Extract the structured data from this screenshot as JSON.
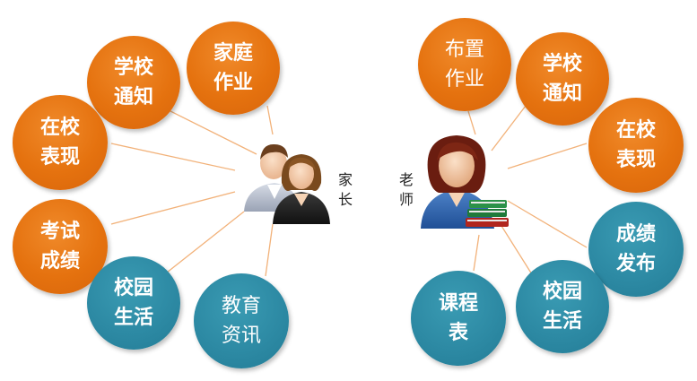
{
  "colors": {
    "orange": "#e5720f",
    "teal": "#2d8aa4",
    "connector": "#f2b27a",
    "text": "#ffffff"
  },
  "parent": {
    "label": [
      "家",
      "长"
    ],
    "icon": "parents-icon",
    "nodes": [
      {
        "lines": [
          "家庭",
          "作业"
        ],
        "color": "orange"
      },
      {
        "lines": [
          "学校",
          "通知"
        ],
        "color": "orange"
      },
      {
        "lines": [
          "在校",
          "表现"
        ],
        "color": "orange"
      },
      {
        "lines": [
          "考试",
          "成绩"
        ],
        "color": "orange"
      },
      {
        "lines": [
          "校园",
          "生活"
        ],
        "color": "teal"
      },
      {
        "lines": [
          "教育",
          "资讯"
        ],
        "color": "teal"
      }
    ]
  },
  "teacher": {
    "label": [
      "老",
      "师"
    ],
    "icon": "teacher-icon",
    "nodes": [
      {
        "lines": [
          "布置",
          "作业"
        ],
        "color": "orange"
      },
      {
        "lines": [
          "学校",
          "通知"
        ],
        "color": "orange"
      },
      {
        "lines": [
          "在校",
          "表现"
        ],
        "color": "orange"
      },
      {
        "lines": [
          "成绩",
          "发布"
        ],
        "color": "teal"
      },
      {
        "lines": [
          "校园",
          "生活"
        ],
        "color": "teal"
      },
      {
        "lines": [
          "课程",
          "表"
        ],
        "color": "teal"
      }
    ]
  }
}
